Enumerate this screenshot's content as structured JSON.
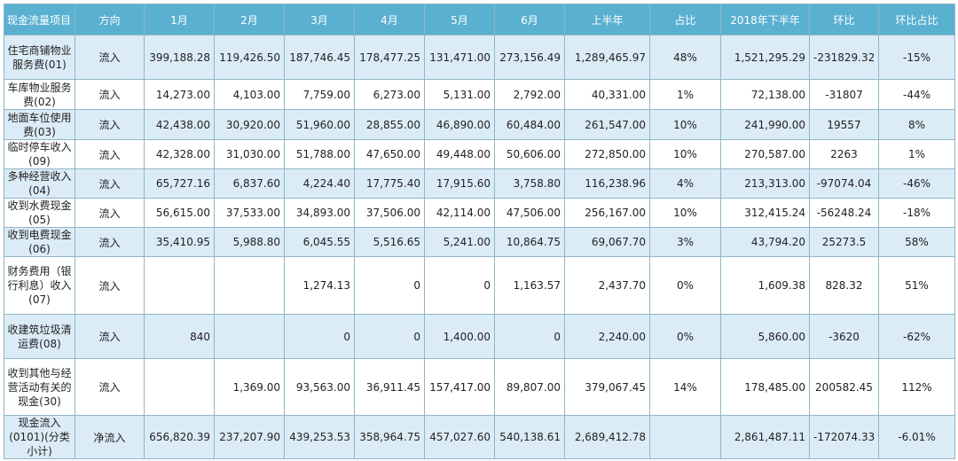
{
  "headers": [
    "现金流量项目",
    "方向",
    "1月",
    "2月",
    "3月",
    "4月",
    "5月",
    "6月",
    "上半年",
    "占比",
    "2018年下半年",
    "环比",
    "环比占比"
  ],
  "rows": [
    {
      "name": "住宅商铺物业服务费(01)",
      "dir": "流入",
      "m1": "399,188.28",
      "m2": "119,426.50",
      "m3": "187,746.45",
      "m4": "178,477.25",
      "m5": "131,471.00",
      "m6": "273,156.49",
      "h1": "1,289,465.97",
      "share": "48%",
      "h2018": "1,521,295.29",
      "qoq": "-231829.32",
      "qoq_pct": "-15%"
    },
    {
      "name": "车库物业服务费(02)",
      "dir": "流入",
      "m1": "14,273.00",
      "m2": "4,103.00",
      "m3": "7,759.00",
      "m4": "6,273.00",
      "m5": "5,131.00",
      "m6": "2,792.00",
      "h1": "40,331.00",
      "share": "1%",
      "h2018": "72,138.00",
      "qoq": "-31807",
      "qoq_pct": "-44%"
    },
    {
      "name": "地面车位使用费(03)",
      "dir": "流入",
      "m1": "42,438.00",
      "m2": "30,920.00",
      "m3": "51,960.00",
      "m4": "28,855.00",
      "m5": "46,890.00",
      "m6": "60,484.00",
      "h1": "261,547.00",
      "share": "10%",
      "h2018": "241,990.00",
      "qoq": "19557",
      "qoq_pct": "8%"
    },
    {
      "name": "临时停车收入(09)",
      "dir": "流入",
      "m1": "42,328.00",
      "m2": "31,030.00",
      "m3": "51,788.00",
      "m4": "47,650.00",
      "m5": "49,448.00",
      "m6": "50,606.00",
      "h1": "272,850.00",
      "share": "10%",
      "h2018": "270,587.00",
      "qoq": "2263",
      "qoq_pct": "1%"
    },
    {
      "name": "多种经营收入(04)",
      "dir": "流入",
      "m1": "65,727.16",
      "m2": "6,837.60",
      "m3": "4,224.40",
      "m4": "17,775.40",
      "m5": "17,915.60",
      "m6": "3,758.80",
      "h1": "116,238.96",
      "share": "4%",
      "h2018": "213,313.00",
      "qoq": "-97074.04",
      "qoq_pct": "-46%"
    },
    {
      "name": "收到水费现金(05)",
      "dir": "流入",
      "m1": "56,615.00",
      "m2": "37,533.00",
      "m3": "34,893.00",
      "m4": "37,506.00",
      "m5": "42,114.00",
      "m6": "47,506.00",
      "h1": "256,167.00",
      "share": "10%",
      "h2018": "312,415.24",
      "qoq": "-56248.24",
      "qoq_pct": "-18%"
    },
    {
      "name": "收到电费现金(06)",
      "dir": "流入",
      "m1": "35,410.95",
      "m2": "5,988.80",
      "m3": "6,045.55",
      "m4": "5,516.65",
      "m5": "5,241.00",
      "m6": "10,864.75",
      "h1": "69,067.70",
      "share": "3%",
      "h2018": "43,794.20",
      "qoq": "25273.5",
      "qoq_pct": "58%"
    },
    {
      "name": "财务费用（银行利息）收入(07)",
      "dir": "流入",
      "m1": "",
      "m2": "",
      "m3": "1,274.13",
      "m4": "0",
      "m5": "0",
      "m6": "1,163.57",
      "h1": "2,437.70",
      "share": "0%",
      "h2018": "1,609.38",
      "qoq": "828.32",
      "qoq_pct": "51%"
    },
    {
      "name": "收建筑垃圾清运费(08)",
      "dir": "流入",
      "m1": "840",
      "m2": "",
      "m3": "0",
      "m4": "0",
      "m5": "1,400.00",
      "m6": "0",
      "h1": "2,240.00",
      "share": "0%",
      "h2018": "5,860.00",
      "qoq": "-3620",
      "qoq_pct": "-62%"
    },
    {
      "name": "收到其他与经营活动有关的现金(30)",
      "dir": "流入",
      "m1": "",
      "m2": "1,369.00",
      "m3": "93,563.00",
      "m4": "36,911.45",
      "m5": "157,417.00",
      "m6": "89,807.00",
      "h1": "379,067.45",
      "share": "14%",
      "h2018": "178,485.00",
      "qoq": "200582.45",
      "qoq_pct": "112%"
    },
    {
      "name": "现金流入(0101)(分类小计)",
      "dir": "净流入",
      "m1": "656,820.39",
      "m2": "237,207.90",
      "m3": "439,253.53",
      "m4": "358,964.75",
      "m5": "457,027.60",
      "m6": "540,138.61",
      "h1": "2,689,412.78",
      "share": "",
      "h2018": "2,861,487.11",
      "qoq": "-172074.33",
      "qoq_pct": "-6.01%"
    }
  ]
}
